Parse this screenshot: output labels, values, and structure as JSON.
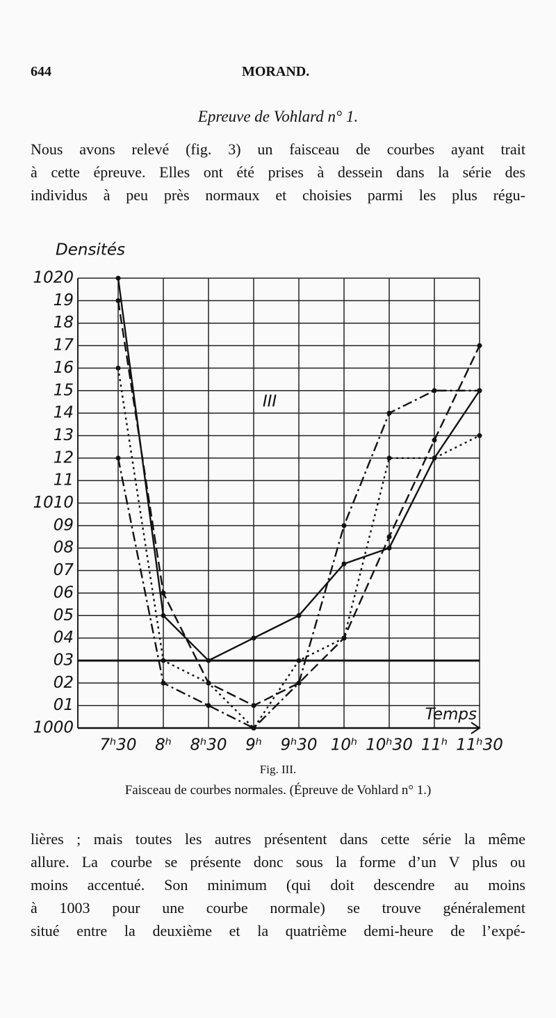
{
  "header": {
    "page_number": "644",
    "running_title": "MORAND."
  },
  "section_title": "Epreuve de Vohlard n° 1.",
  "paragraph_1": [
    "Nous avons relevé (fig. 3) un faisceau de courbes ayant trait",
    "à cette épreuve. Elles ont été prises à dessein dans la série des",
    "individus à peu près normaux et choisies parmi les plus régu-"
  ],
  "chart_data": {
    "type": "line",
    "y_label": "Densités",
    "x_label": "Temps",
    "annotation": "III",
    "categories": [
      "7ʰ30",
      "8ʰ",
      "8ʰ30",
      "9ʰ",
      "9ʰ30",
      "10ʰ",
      "10ʰ30",
      "11ʰ",
      "11ʰ30"
    ],
    "ylim": [
      1000,
      1020
    ],
    "yticks": [
      1000,
      {
        "value": 1001,
        "label": "01"
      },
      {
        "value": 1002,
        "label": "02"
      },
      {
        "value": 1003,
        "label": "03"
      },
      {
        "value": 1004,
        "label": "04"
      },
      {
        "value": 1005,
        "label": "05"
      },
      {
        "value": 1006,
        "label": "06"
      },
      {
        "value": 1007,
        "label": "07"
      },
      {
        "value": 1008,
        "label": "08"
      },
      {
        "value": 1009,
        "label": "09"
      },
      1010,
      {
        "value": 1011,
        "label": "11"
      },
      {
        "value": 1012,
        "label": "12"
      },
      {
        "value": 1013,
        "label": "13"
      },
      {
        "value": 1014,
        "label": "14"
      },
      {
        "value": 1015,
        "label": "15"
      },
      {
        "value": 1016,
        "label": "16"
      },
      {
        "value": 1017,
        "label": "17"
      },
      {
        "value": 1018,
        "label": "18"
      },
      {
        "value": 1019,
        "label": "19"
      },
      1020
    ],
    "grid": true,
    "hline": 1003,
    "series": [
      {
        "color": "#111111",
        "dash": "solid",
        "values": [
          1020,
          1005,
          1003,
          1004,
          1005,
          1007.3,
          1008,
          1012,
          1015
        ]
      },
      {
        "color": "#111111",
        "dash": "dashed",
        "values": [
          1019,
          1006,
          1002,
          1001,
          1002,
          1004,
          1008.5,
          1012.8,
          1017
        ]
      },
      {
        "color": "#111111",
        "dash": "dashdot",
        "values": [
          1012,
          1002,
          1001,
          1000,
          1002,
          1009,
          1014,
          1015,
          1015
        ]
      },
      {
        "color": "#111111",
        "dash": "dotted",
        "values": [
          1016,
          1003,
          1002,
          1000,
          1003,
          1004,
          1012,
          1012,
          1013
        ]
      }
    ]
  },
  "figure_label": "Fig. III.",
  "figure_caption": "Faisceau de courbes normales. (Épreuve de Vohlard n° 1.)",
  "paragraph_2": [
    "lières ; mais toutes les autres présentent dans cette série la même",
    "allure. La courbe se présente donc sous la forme d’un V plus ou",
    "moins accentué. Son minimum (qui doit descendre au moins",
    "à 1003 pour une courbe normale) se trouve généralement",
    "situé entre la deuxième et la quatrième demi-heure de l’expé-"
  ]
}
